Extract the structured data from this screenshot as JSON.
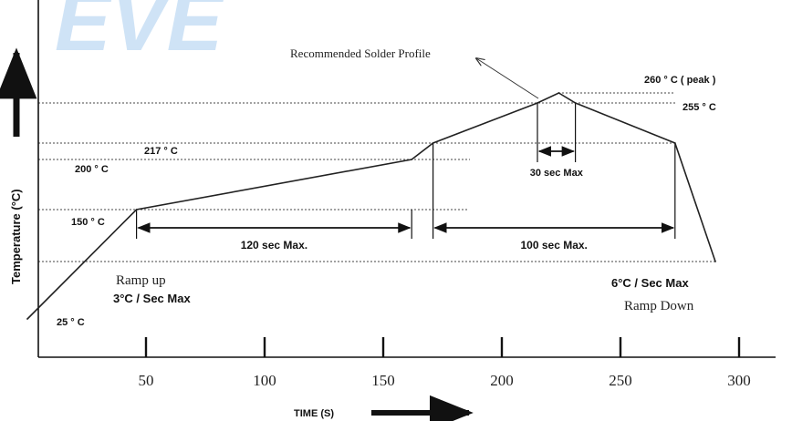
{
  "chart_data": {
    "type": "line",
    "title": "",
    "xlabel": "TIME (S)",
    "ylabel": "Temperature (°C)",
    "x_ticks": [
      50,
      100,
      150,
      200,
      250,
      300
    ],
    "xlim": [
      0,
      310
    ],
    "ylim": [
      0,
      290
    ],
    "grid": false,
    "legend": "none",
    "watermark": "EVE",
    "reference_levels": [
      {
        "value": 25,
        "label": "25 ° C"
      },
      {
        "value": 150,
        "label": "150 ° C"
      },
      {
        "value": 200,
        "label": "200 ° C"
      },
      {
        "value": 217,
        "label": "217 ° C"
      },
      {
        "value": 255,
        "label": "255 ° C"
      },
      {
        "value": 260,
        "label": "260 ° C  ( peak )"
      }
    ],
    "series": [
      {
        "x": [
          0,
          46,
          162,
          171,
          215,
          224,
          231,
          273,
          290
        ],
        "y": [
          25,
          150,
          200,
          217,
          255,
          260,
          255,
          217,
          100
        ]
      }
    ],
    "annotations": {
      "profile_label": "Recommended Solder Profile",
      "ramp_up_title": "Ramp up",
      "ramp_up_rate": "3°C / Sec Max",
      "ramp_down_rate": "6°C / Sec Max",
      "ramp_down_title": "Ramp Down",
      "spans": [
        {
          "from": 46,
          "to": 162,
          "label": "120 sec Max."
        },
        {
          "from": 171,
          "to": 273,
          "label": "100 sec Max."
        },
        {
          "from": 215,
          "to": 231,
          "label": "30 sec Max"
        }
      ]
    },
    "colors": {
      "line": "#222222",
      "watermark": "#cfe3f6"
    }
  }
}
